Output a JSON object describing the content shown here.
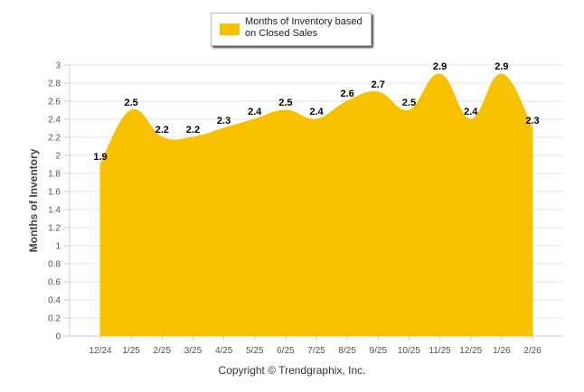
{
  "chart_data": {
    "type": "area",
    "series": [
      {
        "name": "Months of Inventory based on Closed Sales",
        "values": [
          1.9,
          2.5,
          2.2,
          2.2,
          2.3,
          2.4,
          2.5,
          2.4,
          2.6,
          2.7,
          2.5,
          2.9,
          2.4,
          2.9,
          2.3
        ]
      }
    ],
    "categories": [
      "12/24",
      "1/25",
      "2/25",
      "3/25",
      "4/25",
      "5/25",
      "6/25",
      "7/25",
      "8/25",
      "9/25",
      "10/25",
      "11/25",
      "12/25",
      "1/26",
      "2/26"
    ],
    "data_labels": [
      "1.9",
      "2.5",
      "2.2",
      "2.2",
      "2.3",
      "2.4",
      "2.5",
      "2.4",
      "2.6",
      "2.7",
      "2.5",
      "2.9",
      "2.4",
      "2.9",
      "2.3"
    ],
    "ylabel": "Months of Inventory",
    "xlabel": "",
    "ylim": [
      0,
      3
    ],
    "yticks": [
      "0",
      "0.2",
      "0.4",
      "0.6",
      "0.8",
      "1",
      "1.2",
      "1.4",
      "1.6",
      "1.8",
      "2",
      "2.2",
      "2.4",
      "2.6",
      "2.8",
      "3"
    ],
    "legend": {
      "label_line1": "Months of Inventory based",
      "label_line2": "on Closed Sales",
      "position": "top-center"
    },
    "grid": true,
    "colors": {
      "fill": "#f7c100",
      "grid": "#e6e6e6",
      "axis": "#cccccc"
    }
  },
  "footer": {
    "copyright": "Copyright © Trendgraphix, Inc."
  }
}
